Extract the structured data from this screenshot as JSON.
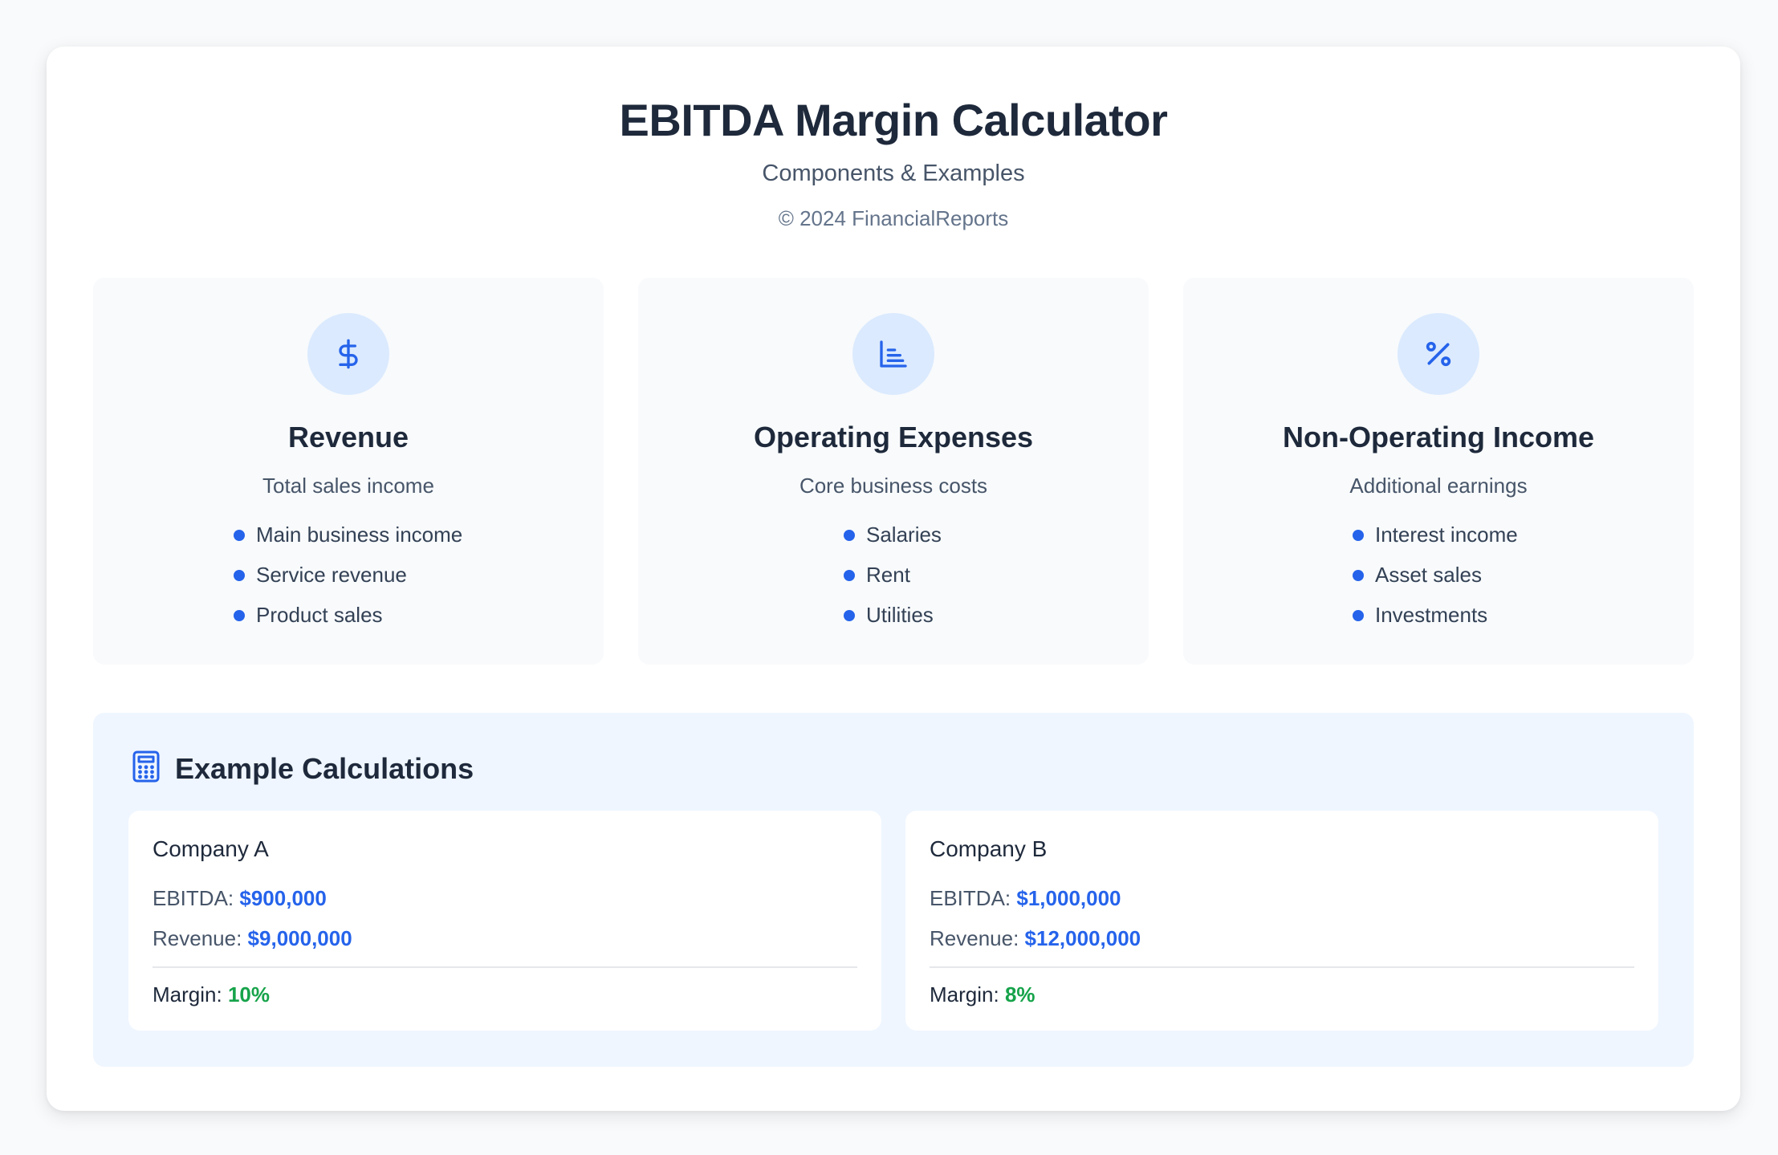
{
  "header": {
    "title": "EBITDA Margin Calculator",
    "subtitle": "Components & Examples",
    "copyright": "© 2024 FinancialReports"
  },
  "components": [
    {
      "icon": "dollar-icon",
      "title": "Revenue",
      "description": "Total sales income",
      "items": [
        "Main business income",
        "Service revenue",
        "Product sales"
      ]
    },
    {
      "icon": "bar-chart-icon",
      "title": "Operating Expenses",
      "description": "Core business costs",
      "items": [
        "Salaries",
        "Rent",
        "Utilities"
      ]
    },
    {
      "icon": "percent-icon",
      "title": "Non-Operating Income",
      "description": "Additional earnings",
      "items": [
        "Interest income",
        "Asset sales",
        "Investments"
      ]
    }
  ],
  "examples": {
    "icon": "calculator-icon",
    "title": "Example Calculations",
    "companies": [
      {
        "name": "Company A",
        "ebitda_label": "EBITDA:",
        "ebitda": "$900,000",
        "revenue_label": "Revenue:",
        "revenue": "$9,000,000",
        "margin_label": "Margin:",
        "margin": "10%"
      },
      {
        "name": "Company B",
        "ebitda_label": "EBITDA:",
        "ebitda": "$1,000,000",
        "revenue_label": "Revenue:",
        "revenue": "$12,000,000",
        "margin_label": "Margin:",
        "margin": "8%"
      }
    ]
  },
  "colors": {
    "accent": "#2563eb",
    "icon_bg": "#dbeafe",
    "positive": "#16a34a",
    "panel_bg": "#eff6ff"
  }
}
